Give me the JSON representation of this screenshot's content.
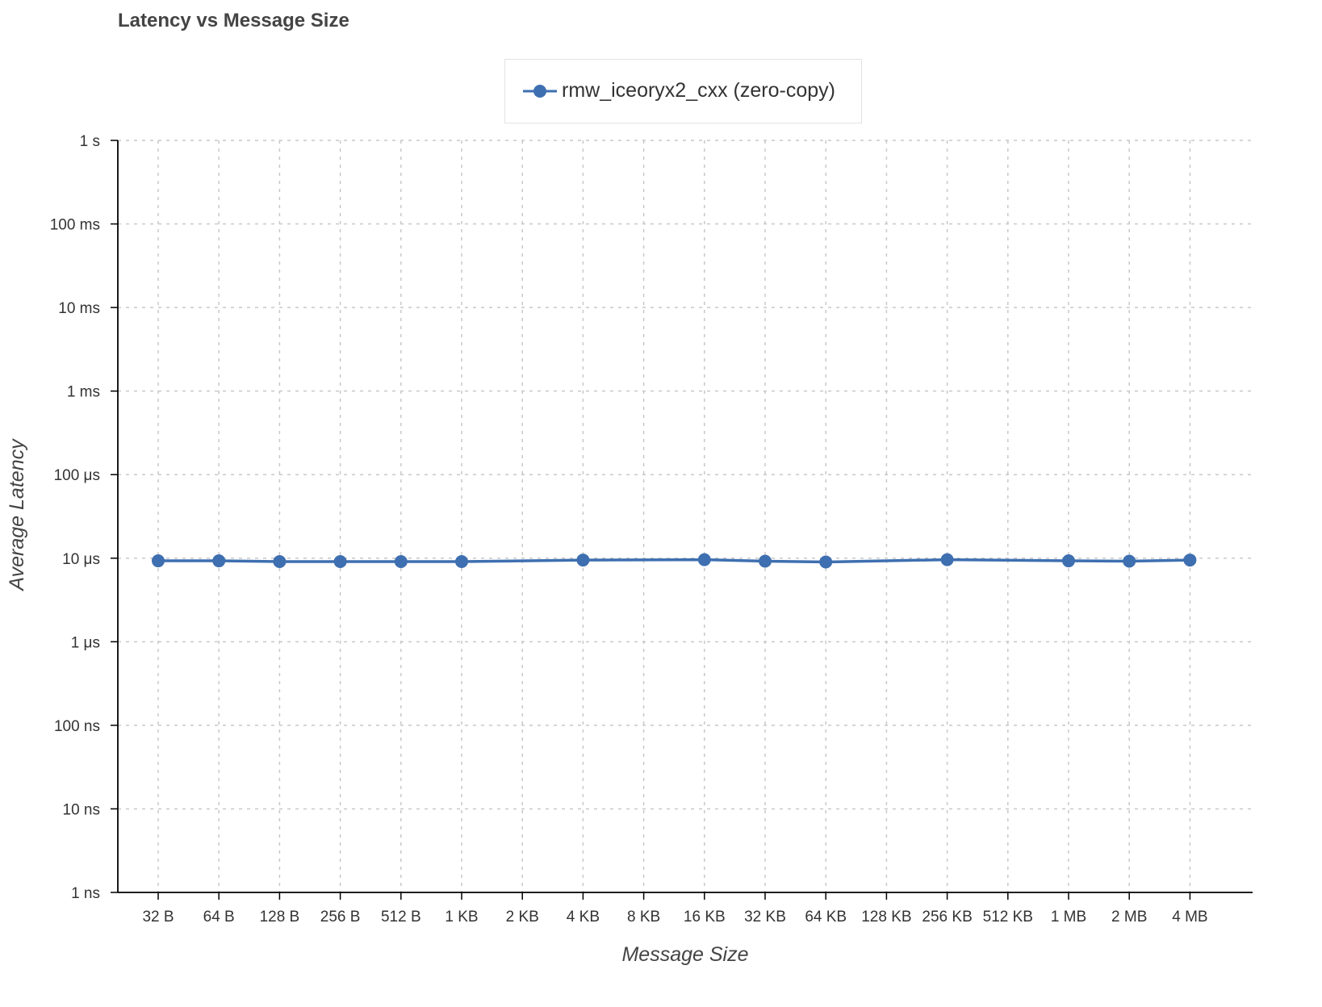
{
  "chart_data": {
    "type": "line",
    "title": "Latency vs Message Size",
    "xlabel": "Message Size",
    "ylabel": "Average Latency",
    "x_scale": "categorical",
    "y_scale": "log",
    "y_unit": "seconds",
    "ylim": [
      1e-09,
      1
    ],
    "yticks": [
      {
        "value": 1,
        "label": "1 s"
      },
      {
        "value": 0.1,
        "label": "100 ms"
      },
      {
        "value": 0.01,
        "label": "10 ms"
      },
      {
        "value": 0.001,
        "label": "1 ms"
      },
      {
        "value": 0.0001,
        "label": "100 μs"
      },
      {
        "value": 1e-05,
        "label": "10 μs"
      },
      {
        "value": 1e-06,
        "label": "1 μs"
      },
      {
        "value": 1e-07,
        "label": "100 ns"
      },
      {
        "value": 1e-08,
        "label": "10 ns"
      },
      {
        "value": 1e-09,
        "label": "1 ns"
      }
    ],
    "categories": [
      "32 B",
      "64 B",
      "128 B",
      "256 B",
      "512 B",
      "1 KB",
      "2 KB",
      "4 KB",
      "8 KB",
      "16 KB",
      "32 KB",
      "64 KB",
      "128 KB",
      "256 KB",
      "512 KB",
      "1 MB",
      "2 MB",
      "4 MB"
    ],
    "grid": true,
    "legend_position": "top-center",
    "series": [
      {
        "name": "rmw_iceoryx2_cxx (zero-copy)",
        "color": "#3e6fb0",
        "values": [
          9.3e-06,
          9.3e-06,
          9.1e-06,
          9.1e-06,
          9.1e-06,
          9.1e-06,
          null,
          9.5e-06,
          null,
          9.6e-06,
          9.2e-06,
          9e-06,
          null,
          9.6e-06,
          null,
          9.3e-06,
          9.2e-06,
          9.5e-06
        ]
      }
    ]
  }
}
